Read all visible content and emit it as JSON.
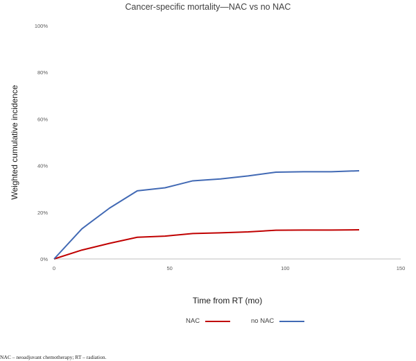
{
  "chart_data": {
    "type": "line",
    "title": "Cancer-specific mortality—NAC vs no NAC",
    "xlabel": "Time from RT (mo)",
    "ylabel": "Weighted cumulative incidence",
    "xlim": [
      0,
      150
    ],
    "ylim": [
      0,
      100
    ],
    "x_ticks": [
      0,
      50,
      100,
      150
    ],
    "y_ticks": [
      0,
      20,
      40,
      60,
      80,
      100
    ],
    "y_tick_labels": [
      "0%",
      "20%",
      "40%",
      "60%",
      "80%",
      "100%"
    ],
    "grid": false,
    "legend_position": "bottom-center",
    "series": [
      {
        "name": "NAC",
        "color": "#c00000",
        "x": [
          0,
          12,
          24,
          36,
          48,
          60,
          72,
          84,
          96,
          108,
          120,
          132
        ],
        "values": [
          0,
          3.8,
          6.7,
          9.3,
          9.8,
          10.9,
          11.2,
          11.6,
          12.3,
          12.4,
          12.4,
          12.5
        ]
      },
      {
        "name": "no NAC",
        "color": "#4169b4",
        "x": [
          0,
          12,
          24,
          36,
          48,
          60,
          72,
          84,
          96,
          108,
          120,
          132
        ],
        "values": [
          0,
          12.9,
          21.8,
          29.2,
          30.5,
          33.5,
          34.3,
          35.6,
          37.2,
          37.4,
          37.4,
          37.8
        ]
      }
    ]
  },
  "caption": "NAC – neoadjuvant chemotherapy; RT – radiation."
}
